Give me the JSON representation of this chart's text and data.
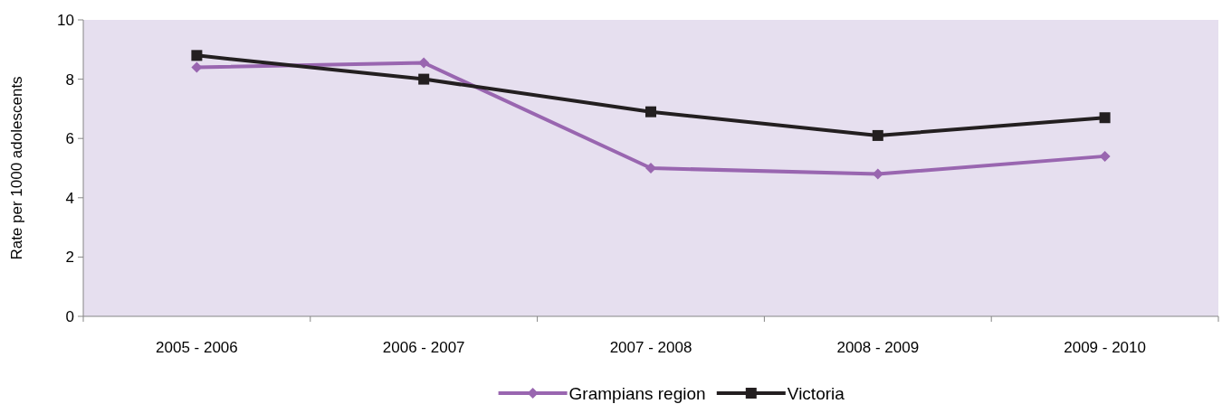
{
  "chart_data": {
    "type": "line",
    "ylabel": "Rate per 1000 adolescents",
    "categories": [
      "2005 - 2006",
      "2006 - 2007",
      "2007 - 2008",
      "2008 - 2009",
      "2009 - 2010"
    ],
    "series": [
      {
        "name": "Grampians region",
        "color": "#9966b0",
        "marker": "diamond",
        "values": [
          8.4,
          8.55,
          5.0,
          4.8,
          5.4
        ]
      },
      {
        "name": "Victoria",
        "color": "#231f20",
        "marker": "square",
        "values": [
          8.8,
          8.0,
          6.9,
          6.1,
          6.7
        ]
      }
    ],
    "ylim": [
      0,
      10
    ],
    "yticks": [
      0,
      2,
      4,
      6,
      8,
      10
    ],
    "grid": false,
    "legend": "bottom",
    "line_style": "solid"
  }
}
